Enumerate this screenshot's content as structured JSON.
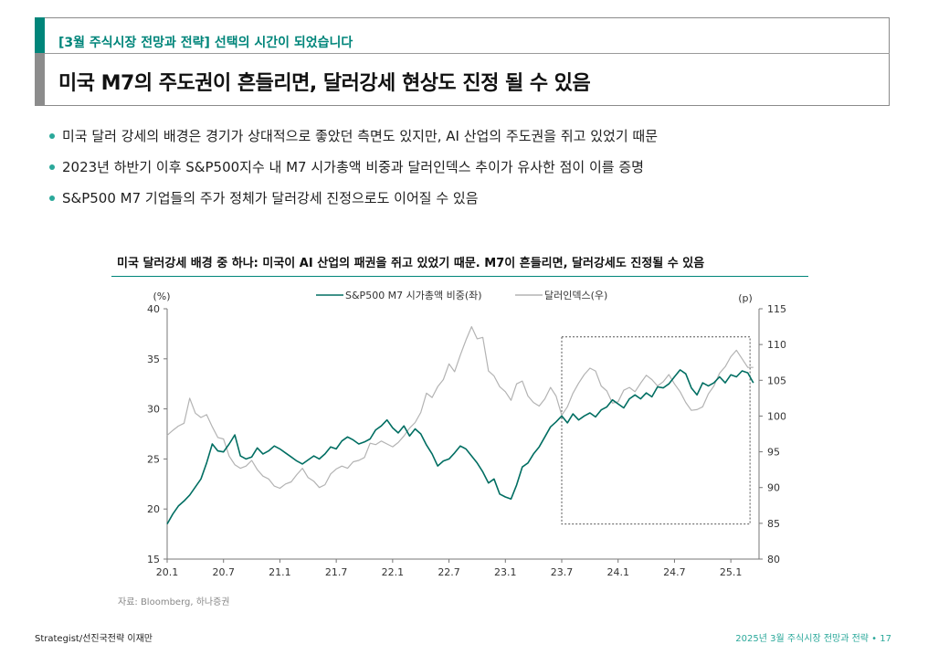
{
  "header": {
    "subtitle": "[3월 주식시장 전망과 전략] 선택의 시간이 되었습니다",
    "title": "미국 M7의 주도권이 흔들리면, 달러강세 현상도 진정 될 수 있음"
  },
  "bullets": [
    "미국 달러 강세의 배경은 경기가 상대적으로 좋았던 측면도 있지만, AI 산업의 주도권을 쥐고 있었기 때문",
    "2023년 하반기 이후 S&P500지수 내 M7 시가총액 비중과 달러인덱스 추이가 유사한 점이 이를 증명",
    "S&P500 M7 기업들의 주가 정체가 달러강세 진정으로도 이어질 수 있음"
  ],
  "chart_data": {
    "type": "line",
    "title": "미국 달러강세 배경 중 하나: 미국이 AI 산업의 패권을 쥐고 있었기 때문. M7이 흔들리면, 달러강세도 진정될 수 있음",
    "left_unit": "(%)",
    "right_unit": "(p)",
    "x_tick_labels": [
      "20.1",
      "20.7",
      "21.1",
      "21.7",
      "22.1",
      "22.7",
      "23.1",
      "23.7",
      "24.1",
      "24.7",
      "25.1"
    ],
    "y_left_ticks": [
      15,
      20,
      25,
      30,
      35,
      40
    ],
    "y_right_ticks": [
      80,
      85,
      90,
      95,
      100,
      105,
      110,
      115
    ],
    "ylim_left": [
      15,
      40
    ],
    "ylim_right": [
      80,
      115
    ],
    "xlim": [
      2020.0,
      2025.25
    ],
    "highlight_box": {
      "x": [
        2023.5,
        2025.17
      ],
      "y_left": [
        18.5,
        37.2
      ]
    },
    "series": [
      {
        "name": "S&P500 M7 시가총액 비중(좌)",
        "axis": "left",
        "color": "#006e62",
        "points": [
          [
            2020.0,
            18.5
          ],
          [
            2020.05,
            19.5
          ],
          [
            2020.1,
            20.3
          ],
          [
            2020.15,
            20.8
          ],
          [
            2020.2,
            21.4
          ],
          [
            2020.25,
            22.2
          ],
          [
            2020.3,
            23.0
          ],
          [
            2020.35,
            24.6
          ],
          [
            2020.4,
            26.5
          ],
          [
            2020.45,
            25.8
          ],
          [
            2020.5,
            25.7
          ],
          [
            2020.55,
            26.5
          ],
          [
            2020.6,
            27.4
          ],
          [
            2020.65,
            25.3
          ],
          [
            2020.7,
            25.0
          ],
          [
            2020.75,
            25.2
          ],
          [
            2020.8,
            26.1
          ],
          [
            2020.85,
            25.5
          ],
          [
            2020.9,
            25.8
          ],
          [
            2020.95,
            26.3
          ],
          [
            2021.0,
            26.0
          ],
          [
            2021.05,
            25.6
          ],
          [
            2021.1,
            25.2
          ],
          [
            2021.15,
            24.8
          ],
          [
            2021.2,
            24.5
          ],
          [
            2021.25,
            24.9
          ],
          [
            2021.3,
            25.3
          ],
          [
            2021.35,
            25.0
          ],
          [
            2021.4,
            25.5
          ],
          [
            2021.45,
            26.2
          ],
          [
            2021.5,
            26.0
          ],
          [
            2021.55,
            26.8
          ],
          [
            2021.6,
            27.2
          ],
          [
            2021.65,
            26.9
          ],
          [
            2021.7,
            26.5
          ],
          [
            2021.75,
            26.7
          ],
          [
            2021.8,
            27.0
          ],
          [
            2021.85,
            27.9
          ],
          [
            2021.9,
            28.3
          ],
          [
            2021.95,
            28.9
          ],
          [
            2022.0,
            28.1
          ],
          [
            2022.05,
            27.6
          ],
          [
            2022.1,
            28.3
          ],
          [
            2022.15,
            27.3
          ],
          [
            2022.2,
            28.0
          ],
          [
            2022.25,
            27.5
          ],
          [
            2022.3,
            26.4
          ],
          [
            2022.35,
            25.5
          ],
          [
            2022.4,
            24.3
          ],
          [
            2022.45,
            24.8
          ],
          [
            2022.5,
            25.0
          ],
          [
            2022.55,
            25.6
          ],
          [
            2022.6,
            26.3
          ],
          [
            2022.65,
            26.0
          ],
          [
            2022.7,
            25.3
          ],
          [
            2022.75,
            24.6
          ],
          [
            2022.8,
            23.7
          ],
          [
            2022.85,
            22.6
          ],
          [
            2022.9,
            23.0
          ],
          [
            2022.95,
            21.5
          ],
          [
            2023.0,
            21.2
          ],
          [
            2023.05,
            21.0
          ],
          [
            2023.1,
            22.4
          ],
          [
            2023.15,
            24.2
          ],
          [
            2023.2,
            24.6
          ],
          [
            2023.25,
            25.5
          ],
          [
            2023.3,
            26.2
          ],
          [
            2023.35,
            27.2
          ],
          [
            2023.4,
            28.2
          ],
          [
            2023.45,
            28.7
          ],
          [
            2023.5,
            29.3
          ],
          [
            2023.55,
            28.6
          ],
          [
            2023.6,
            29.5
          ],
          [
            2023.65,
            28.9
          ],
          [
            2023.7,
            29.3
          ],
          [
            2023.75,
            29.6
          ],
          [
            2023.8,
            29.2
          ],
          [
            2023.85,
            29.9
          ],
          [
            2023.9,
            30.2
          ],
          [
            2023.95,
            30.9
          ],
          [
            2024.0,
            30.5
          ],
          [
            2024.05,
            30.1
          ],
          [
            2024.1,
            31.0
          ],
          [
            2024.15,
            31.4
          ],
          [
            2024.2,
            31.0
          ],
          [
            2024.25,
            31.6
          ],
          [
            2024.3,
            31.2
          ],
          [
            2024.35,
            32.2
          ],
          [
            2024.4,
            32.1
          ],
          [
            2024.45,
            32.5
          ],
          [
            2024.5,
            33.2
          ],
          [
            2024.55,
            33.9
          ],
          [
            2024.6,
            33.5
          ],
          [
            2024.65,
            32.1
          ],
          [
            2024.7,
            31.4
          ],
          [
            2024.75,
            32.6
          ],
          [
            2024.8,
            32.3
          ],
          [
            2024.85,
            32.6
          ],
          [
            2024.9,
            33.2
          ],
          [
            2024.95,
            32.6
          ],
          [
            2025.0,
            33.4
          ],
          [
            2025.05,
            33.2
          ],
          [
            2025.1,
            33.8
          ],
          [
            2025.15,
            33.6
          ],
          [
            2025.2,
            32.6
          ]
        ]
      },
      {
        "name": "달러인덱스(우)",
        "axis": "right",
        "color": "#b3b3b3",
        "points": [
          [
            2020.0,
            97.3
          ],
          [
            2020.05,
            98.0
          ],
          [
            2020.1,
            98.6
          ],
          [
            2020.15,
            99.0
          ],
          [
            2020.2,
            102.5
          ],
          [
            2020.25,
            100.4
          ],
          [
            2020.3,
            99.8
          ],
          [
            2020.35,
            100.2
          ],
          [
            2020.4,
            98.5
          ],
          [
            2020.45,
            97.0
          ],
          [
            2020.5,
            96.8
          ],
          [
            2020.55,
            94.4
          ],
          [
            2020.6,
            93.2
          ],
          [
            2020.65,
            92.7
          ],
          [
            2020.7,
            93.0
          ],
          [
            2020.75,
            93.8
          ],
          [
            2020.8,
            92.5
          ],
          [
            2020.85,
            91.6
          ],
          [
            2020.9,
            91.2
          ],
          [
            2020.95,
            90.2
          ],
          [
            2021.0,
            89.9
          ],
          [
            2021.05,
            90.5
          ],
          [
            2021.1,
            90.8
          ],
          [
            2021.15,
            91.8
          ],
          [
            2021.2,
            92.7
          ],
          [
            2021.25,
            91.4
          ],
          [
            2021.3,
            90.9
          ],
          [
            2021.35,
            90.0
          ],
          [
            2021.4,
            90.4
          ],
          [
            2021.45,
            91.9
          ],
          [
            2021.5,
            92.6
          ],
          [
            2021.55,
            93.0
          ],
          [
            2021.6,
            92.7
          ],
          [
            2021.65,
            93.6
          ],
          [
            2021.7,
            93.8
          ],
          [
            2021.75,
            94.2
          ],
          [
            2021.8,
            96.2
          ],
          [
            2021.85,
            96.0
          ],
          [
            2021.9,
            96.5
          ],
          [
            2021.95,
            96.1
          ],
          [
            2022.0,
            95.7
          ],
          [
            2022.05,
            96.3
          ],
          [
            2022.1,
            97.2
          ],
          [
            2022.15,
            98.3
          ],
          [
            2022.2,
            99.1
          ],
          [
            2022.25,
            100.5
          ],
          [
            2022.3,
            103.2
          ],
          [
            2022.35,
            102.6
          ],
          [
            2022.4,
            104.1
          ],
          [
            2022.45,
            105.1
          ],
          [
            2022.5,
            107.3
          ],
          [
            2022.55,
            106.2
          ],
          [
            2022.6,
            108.5
          ],
          [
            2022.65,
            110.6
          ],
          [
            2022.7,
            112.5
          ],
          [
            2022.75,
            110.8
          ],
          [
            2022.8,
            111.0
          ],
          [
            2022.85,
            106.3
          ],
          [
            2022.9,
            105.6
          ],
          [
            2022.95,
            104.1
          ],
          [
            2023.0,
            103.4
          ],
          [
            2023.05,
            102.2
          ],
          [
            2023.1,
            104.5
          ],
          [
            2023.15,
            104.9
          ],
          [
            2023.2,
            102.8
          ],
          [
            2023.25,
            101.9
          ],
          [
            2023.3,
            101.4
          ],
          [
            2023.35,
            102.4
          ],
          [
            2023.4,
            104.0
          ],
          [
            2023.45,
            102.8
          ],
          [
            2023.5,
            100.1
          ],
          [
            2023.55,
            101.3
          ],
          [
            2023.6,
            103.2
          ],
          [
            2023.65,
            104.6
          ],
          [
            2023.7,
            105.8
          ],
          [
            2023.75,
            106.7
          ],
          [
            2023.8,
            106.3
          ],
          [
            2023.85,
            104.2
          ],
          [
            2023.9,
            103.5
          ],
          [
            2023.95,
            101.8
          ],
          [
            2024.0,
            102.0
          ],
          [
            2024.05,
            103.6
          ],
          [
            2024.1,
            104.0
          ],
          [
            2024.15,
            103.4
          ],
          [
            2024.2,
            104.6
          ],
          [
            2024.25,
            105.7
          ],
          [
            2024.3,
            105.1
          ],
          [
            2024.35,
            104.2
          ],
          [
            2024.4,
            104.8
          ],
          [
            2024.45,
            105.8
          ],
          [
            2024.5,
            104.5
          ],
          [
            2024.55,
            103.4
          ],
          [
            2024.6,
            101.9
          ],
          [
            2024.65,
            100.8
          ],
          [
            2024.7,
            100.9
          ],
          [
            2024.75,
            101.3
          ],
          [
            2024.8,
            103.1
          ],
          [
            2024.85,
            104.2
          ],
          [
            2024.9,
            106.0
          ],
          [
            2024.95,
            106.9
          ],
          [
            2025.0,
            108.3
          ],
          [
            2025.05,
            109.2
          ],
          [
            2025.1,
            108.0
          ],
          [
            2025.15,
            106.8
          ],
          [
            2025.2,
            106.8
          ]
        ]
      }
    ]
  },
  "source": "자료: Bloomberg, 하나증권",
  "footer": {
    "left": "Strategist/선진국전략 이재만",
    "right": "2025년 3월 주식시장 전망과 전략 • 17"
  }
}
